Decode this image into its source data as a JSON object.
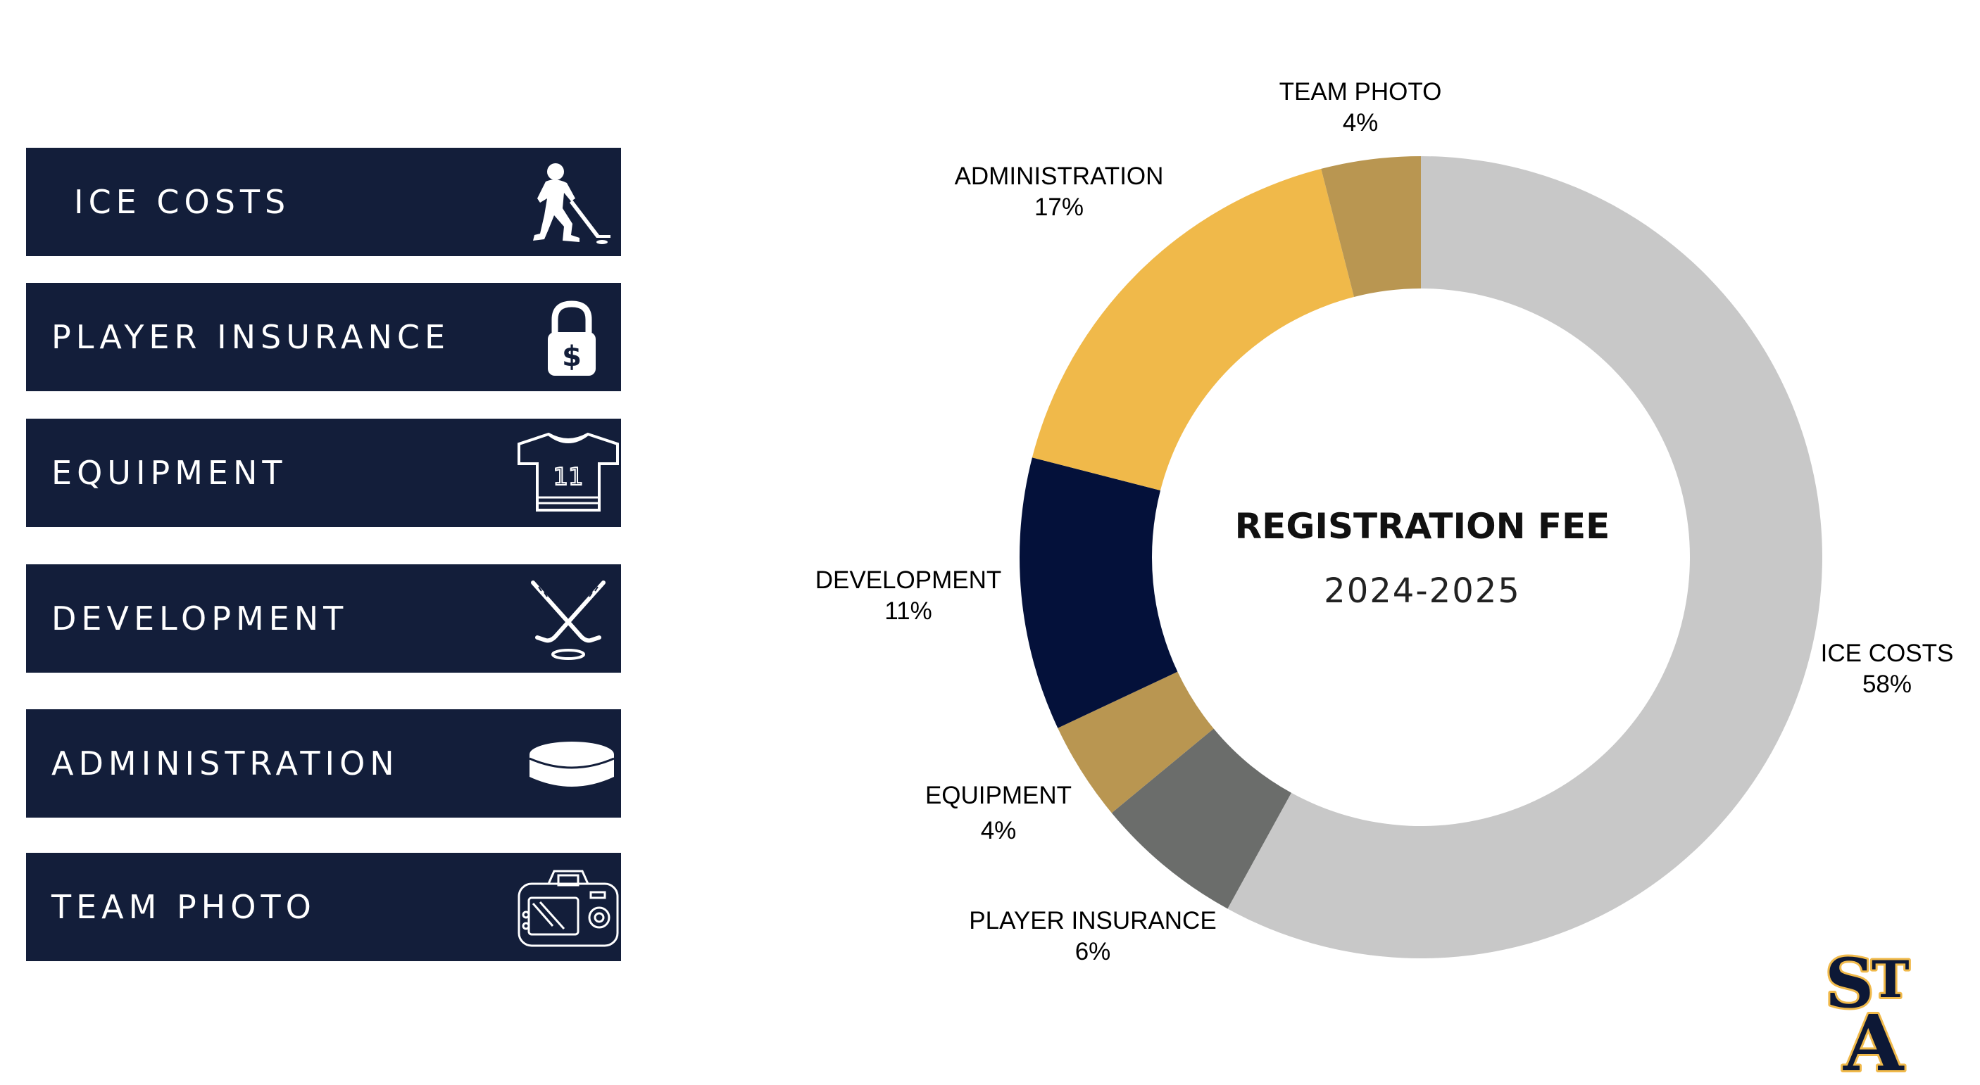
{
  "legend": [
    {
      "label": "ICE COSTS",
      "icon": "hockey-player-icon"
    },
    {
      "label": "PLAYER INSURANCE",
      "icon": "padlock-dollar-icon"
    },
    {
      "label": "EQUIPMENT",
      "icon": "jersey-icon"
    },
    {
      "label": "DEVELOPMENT",
      "icon": "crossed-sticks-icon"
    },
    {
      "label": "ADMINISTRATION",
      "icon": "puck-icon"
    },
    {
      "label": "TEAM PHOTO",
      "icon": "camera-icon"
    }
  ],
  "colors": {
    "legend_bg": "#131e3a",
    "ice": "#c8c8c8",
    "insurance": "#6b6d6b",
    "equipment": "#b99651",
    "development": "#04113a",
    "administration": "#f0b94a",
    "photo": "#b99651"
  },
  "chart_data": {
    "type": "pie",
    "donut": true,
    "title": "REGISTRATION FEE",
    "subtitle": "2024-2025",
    "slices": [
      {
        "name": "ICE COSTS",
        "value": 58,
        "label": "58%",
        "color": "#c8c8c8"
      },
      {
        "name": "PLAYER INSURANCE",
        "value": 6,
        "label": "6%",
        "color": "#6b6d6b"
      },
      {
        "name": "EQUIPMENT",
        "value": 4,
        "label": "4%",
        "color": "#b99651"
      },
      {
        "name": "DEVELOPMENT",
        "value": 11,
        "label": "11%",
        "color": "#04113a"
      },
      {
        "name": "ADMINISTRATION",
        "value": 17,
        "label": "17%",
        "color": "#f0b94a"
      },
      {
        "name": "TEAM PHOTO",
        "value": 4,
        "label": "4%",
        "color": "#b99651"
      }
    ]
  },
  "logo": {
    "text": "STA",
    "fill": "#0d1836",
    "outline": "#f0b94a",
    "name": "sta-logo"
  }
}
